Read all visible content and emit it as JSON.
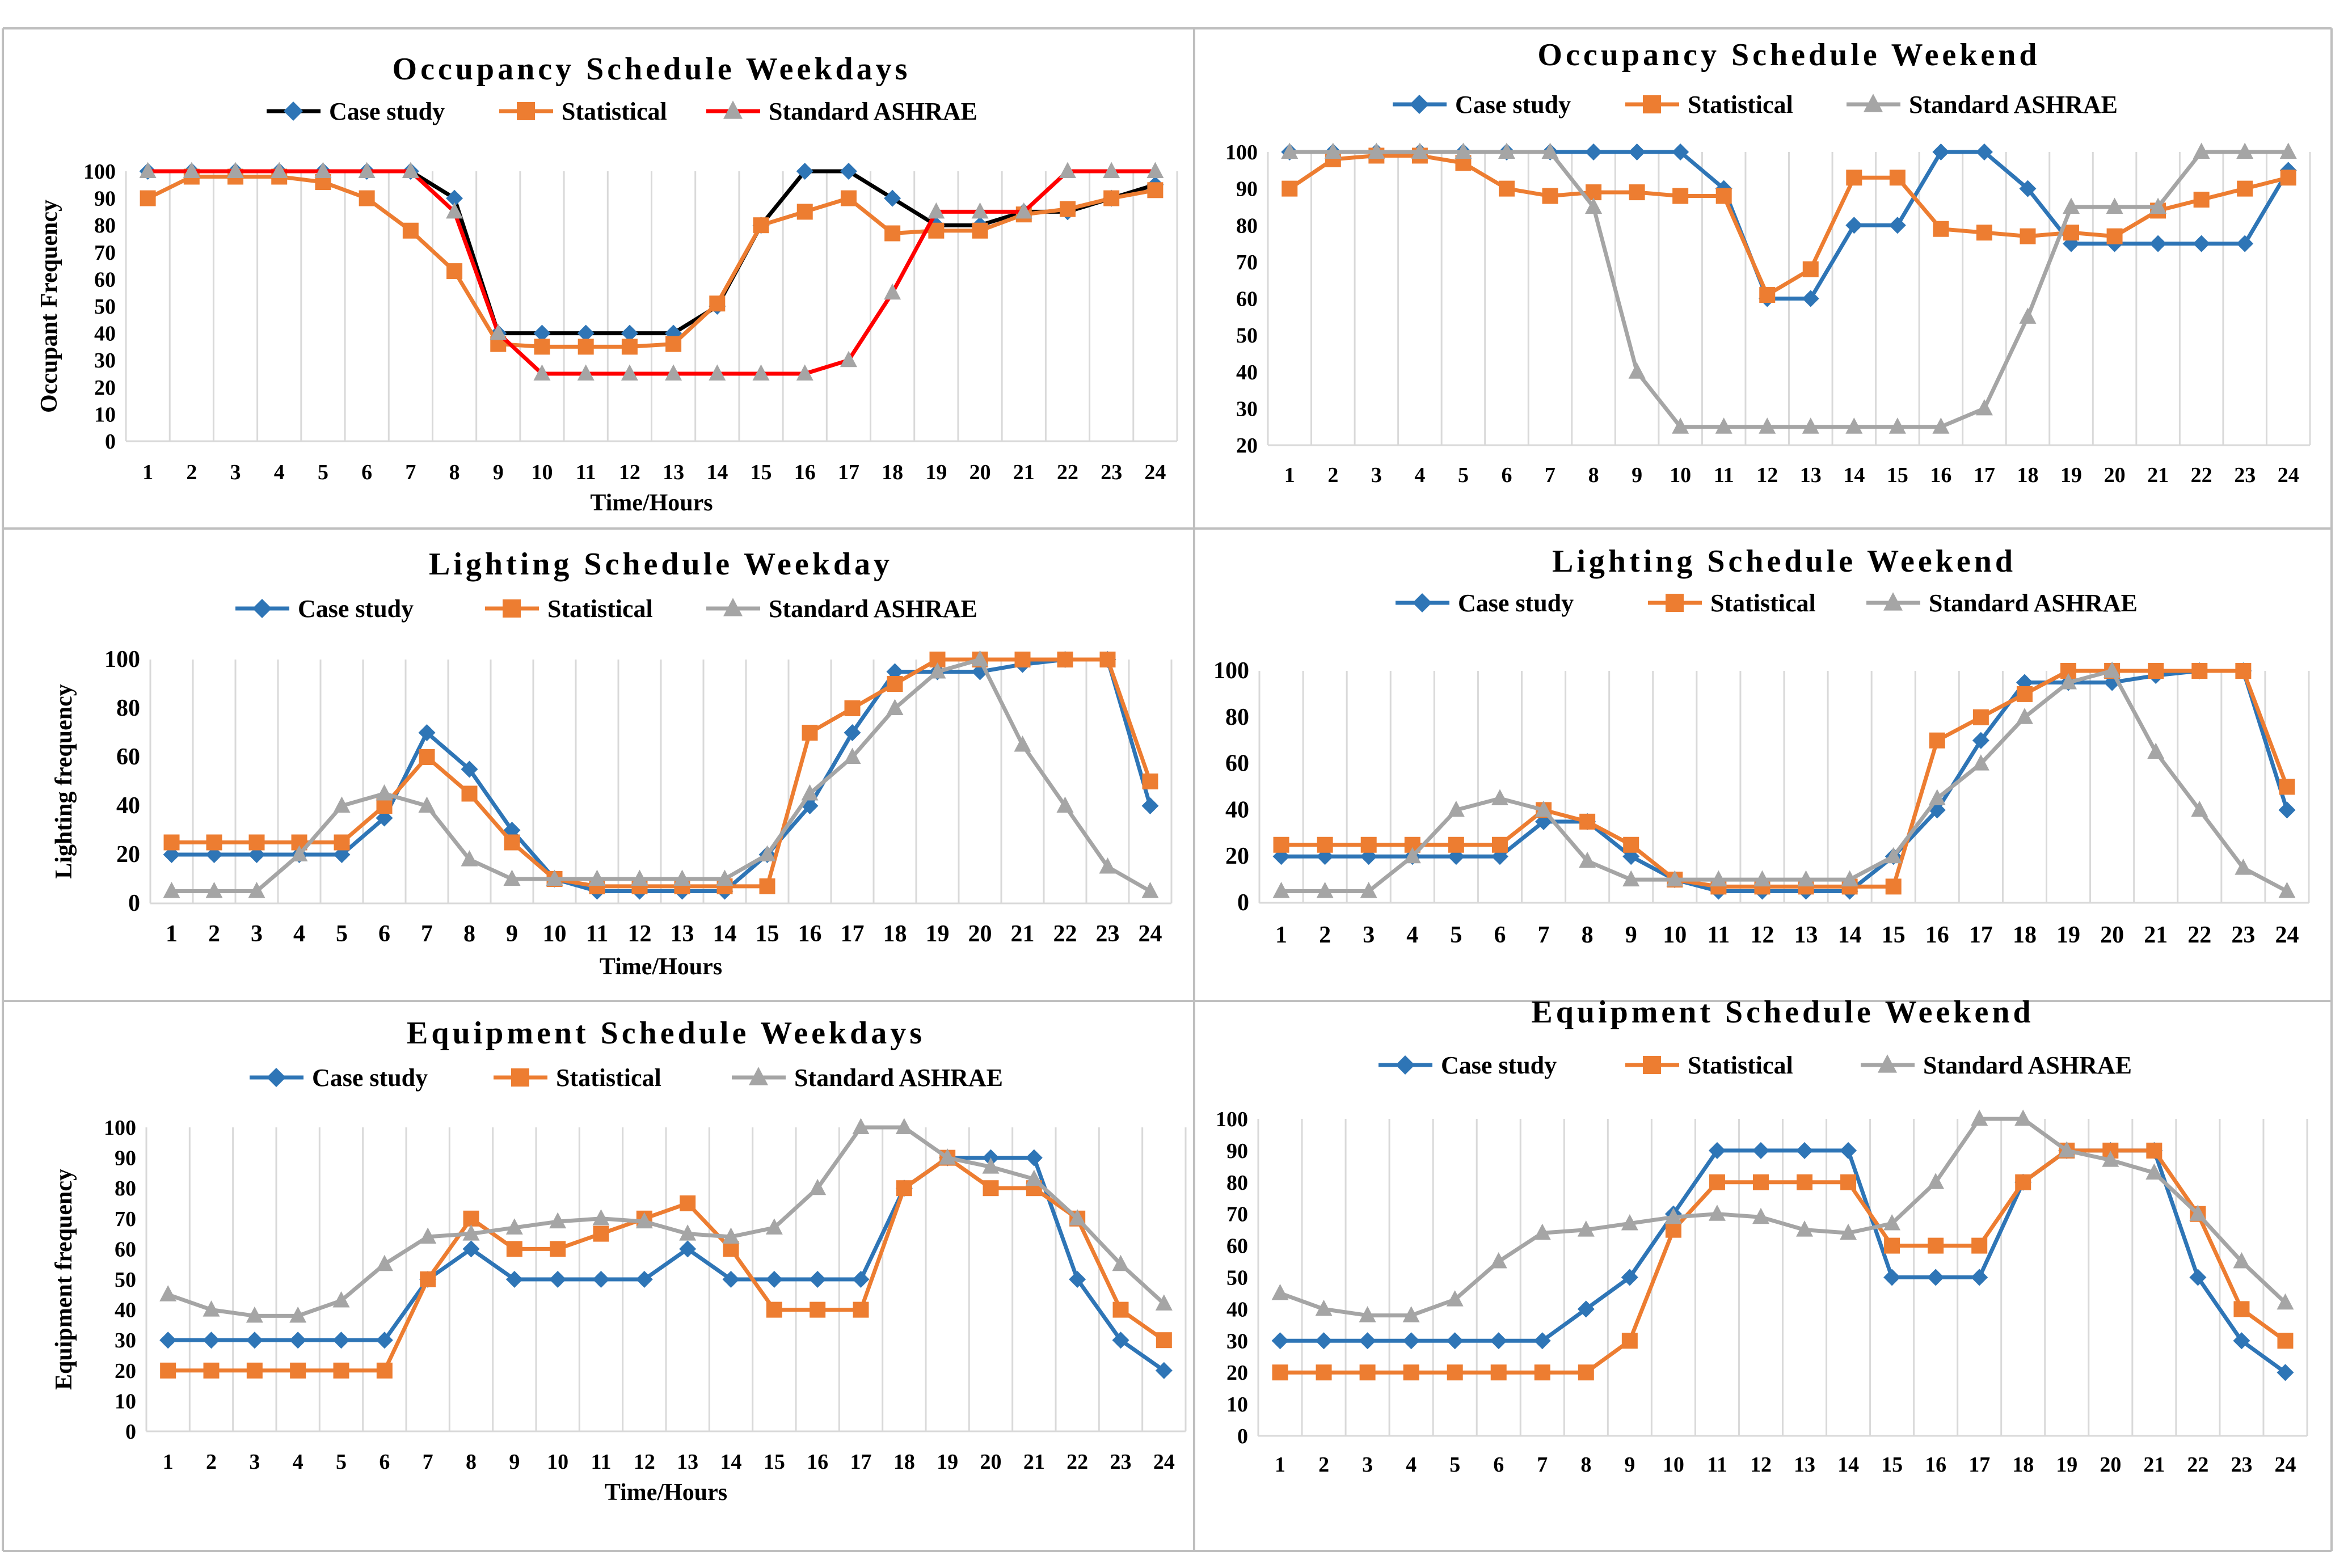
{
  "colors": {
    "case_study": "#2E75B6",
    "statistical": "#ED7D31",
    "ashrae": "#A5A5A5",
    "black": "#000000",
    "red": "#FF0000",
    "grid": "#D9D9D9",
    "border": "#BFBFBF",
    "text": "#000000"
  },
  "chart_data": [
    {
      "id": "occ-weekdays",
      "type": "line",
      "title": "Occupancy Schedule Weekdays",
      "xlabel": "Time/Hours",
      "ylabel": "Occupant Frequency",
      "categories": [
        "1",
        "2",
        "3",
        "4",
        "5",
        "6",
        "7",
        "8",
        "9",
        "10",
        "11",
        "12",
        "13",
        "14",
        "15",
        "16",
        "17",
        "18",
        "19",
        "20",
        "21",
        "22",
        "23",
        "24"
      ],
      "ylim": [
        0,
        100
      ],
      "yticks": [
        0,
        10,
        20,
        30,
        40,
        50,
        60,
        70,
        80,
        90,
        100
      ],
      "grid": true,
      "series": [
        {
          "name": "Case study",
          "color": "#000000",
          "marker": "diamond",
          "marker_color": "#2E75B6",
          "values": [
            100,
            100,
            100,
            100,
            100,
            100,
            100,
            90,
            40,
            40,
            40,
            40,
            40,
            50,
            80,
            100,
            100,
            90,
            80,
            80,
            85,
            85,
            90,
            95
          ]
        },
        {
          "name": "Statistical",
          "color": "#ED7D31",
          "marker": "square",
          "marker_color": "#ED7D31",
          "values": [
            90,
            98,
            98,
            98,
            96,
            90,
            78,
            63,
            36,
            35,
            35,
            35,
            36,
            51,
            80,
            85,
            90,
            77,
            78,
            78,
            84,
            86,
            90,
            93
          ]
        },
        {
          "name": "Standard ASHRAE",
          "color": "#FF0000",
          "marker": "triangle",
          "marker_color": "#A5A5A5",
          "values": [
            100,
            100,
            100,
            100,
            100,
            100,
            100,
            85,
            40,
            25,
            25,
            25,
            25,
            25,
            25,
            25,
            30,
            55,
            85,
            85,
            85,
            100,
            100,
            100
          ]
        }
      ]
    },
    {
      "id": "occ-weekend",
      "type": "line",
      "title": "Occupancy Schedule Weekend",
      "xlabel": "",
      "ylabel": "",
      "categories": [
        "1",
        "2",
        "3",
        "4",
        "5",
        "6",
        "7",
        "8",
        "9",
        "10",
        "11",
        "12",
        "13",
        "14",
        "15",
        "16",
        "17",
        "18",
        "19",
        "20",
        "21",
        "22",
        "23",
        "24"
      ],
      "ylim": [
        20,
        100
      ],
      "yticks": [
        20,
        30,
        40,
        50,
        60,
        70,
        80,
        90,
        100
      ],
      "grid": true,
      "series": [
        {
          "name": "Case study",
          "color": "#2E75B6",
          "marker": "diamond",
          "marker_color": "#2E75B6",
          "values": [
            100,
            100,
            100,
            100,
            100,
            100,
            100,
            100,
            100,
            100,
            90,
            60,
            60,
            80,
            80,
            100,
            100,
            90,
            75,
            75,
            75,
            75,
            75,
            95
          ]
        },
        {
          "name": "Statistical",
          "color": "#ED7D31",
          "marker": "square",
          "marker_color": "#ED7D31",
          "values": [
            90,
            98,
            99,
            99,
            97,
            90,
            88,
            89,
            89,
            88,
            88,
            61,
            68,
            93,
            93,
            79,
            78,
            77,
            78,
            77,
            84,
            87,
            90,
            93
          ]
        },
        {
          "name": "Standard ASHRAE",
          "color": "#A5A5A5",
          "marker": "triangle",
          "marker_color": "#A5A5A5",
          "values": [
            100,
            100,
            100,
            100,
            100,
            100,
            100,
            85,
            40,
            25,
            25,
            25,
            25,
            25,
            25,
            25,
            30,
            55,
            85,
            85,
            85,
            100,
            100,
            100
          ]
        }
      ]
    },
    {
      "id": "light-weekday",
      "type": "line",
      "title": "Lighting Schedule Weekday",
      "xlabel": "Time/Hours",
      "ylabel": "Lighting frequency",
      "categories": [
        "1",
        "2",
        "3",
        "4",
        "5",
        "6",
        "7",
        "8",
        "9",
        "10",
        "11",
        "12",
        "13",
        "14",
        "15",
        "16",
        "17",
        "18",
        "19",
        "20",
        "21",
        "22",
        "23",
        "24"
      ],
      "ylim": [
        0,
        100
      ],
      "yticks": [
        0,
        20,
        40,
        60,
        80,
        100
      ],
      "grid": true,
      "series": [
        {
          "name": "Case study",
          "color": "#2E75B6",
          "marker": "diamond",
          "marker_color": "#2E75B6",
          "values": [
            20,
            20,
            20,
            20,
            20,
            35,
            70,
            55,
            30,
            10,
            5,
            5,
            5,
            5,
            20,
            40,
            70,
            95,
            95,
            95,
            98,
            100,
            100,
            40
          ]
        },
        {
          "name": "Statistical",
          "color": "#ED7D31",
          "marker": "square",
          "marker_color": "#ED7D31",
          "values": [
            25,
            25,
            25,
            25,
            25,
            40,
            60,
            45,
            25,
            10,
            7,
            7,
            7,
            7,
            7,
            70,
            80,
            90,
            100,
            100,
            100,
            100,
            100,
            50
          ]
        },
        {
          "name": "Standard ASHRAE",
          "color": "#A5A5A5",
          "marker": "triangle",
          "marker_color": "#A5A5A5",
          "values": [
            5,
            5,
            5,
            20,
            40,
            45,
            40,
            18,
            10,
            10,
            10,
            10,
            10,
            10,
            20,
            45,
            60,
            80,
            95,
            100,
            65,
            40,
            15,
            5
          ]
        }
      ]
    },
    {
      "id": "light-weekend",
      "type": "line",
      "title": "Lighting Schedule Weekend",
      "xlabel": "",
      "ylabel": "",
      "categories": [
        "1",
        "2",
        "3",
        "4",
        "5",
        "6",
        "7",
        "8",
        "9",
        "10",
        "11",
        "12",
        "13",
        "14",
        "15",
        "16",
        "17",
        "18",
        "19",
        "20",
        "21",
        "22",
        "23",
        "24"
      ],
      "ylim": [
        0,
        100
      ],
      "yticks": [
        0,
        20,
        40,
        60,
        80,
        100
      ],
      "grid": true,
      "series": [
        {
          "name": "Case study",
          "color": "#2E75B6",
          "marker": "diamond",
          "marker_color": "#2E75B6",
          "values": [
            20,
            20,
            20,
            20,
            20,
            20,
            35,
            35,
            20,
            10,
            5,
            5,
            5,
            5,
            20,
            40,
            70,
            95,
            95,
            95,
            98,
            100,
            100,
            40
          ]
        },
        {
          "name": "Statistical",
          "color": "#ED7D31",
          "marker": "square",
          "marker_color": "#ED7D31",
          "values": [
            25,
            25,
            25,
            25,
            25,
            25,
            40,
            35,
            25,
            10,
            7,
            7,
            7,
            7,
            7,
            70,
            80,
            90,
            100,
            100,
            100,
            100,
            100,
            50
          ]
        },
        {
          "name": "Standard ASHRAE",
          "color": "#A5A5A5",
          "marker": "triangle",
          "marker_color": "#A5A5A5",
          "values": [
            5,
            5,
            5,
            20,
            40,
            45,
            40,
            18,
            10,
            10,
            10,
            10,
            10,
            10,
            20,
            45,
            60,
            80,
            95,
            100,
            65,
            40,
            15,
            5
          ]
        }
      ]
    },
    {
      "id": "equip-weekdays",
      "type": "line",
      "title": "Equipment Schedule Weekdays",
      "xlabel": "Time/Hours",
      "ylabel": "Equipment frequency",
      "categories": [
        "1",
        "2",
        "3",
        "4",
        "5",
        "6",
        "7",
        "8",
        "9",
        "10",
        "11",
        "12",
        "13",
        "14",
        "15",
        "16",
        "17",
        "18",
        "19",
        "20",
        "21",
        "22",
        "23",
        "24"
      ],
      "ylim": [
        0,
        100
      ],
      "yticks": [
        0,
        10,
        20,
        30,
        40,
        50,
        60,
        70,
        80,
        90,
        100
      ],
      "grid": true,
      "series": [
        {
          "name": "Case study",
          "color": "#2E75B6",
          "marker": "diamond",
          "marker_color": "#2E75B6",
          "values": [
            30,
            30,
            30,
            30,
            30,
            30,
            50,
            60,
            50,
            50,
            50,
            50,
            60,
            50,
            50,
            50,
            50,
            80,
            90,
            90,
            90,
            50,
            30,
            20
          ]
        },
        {
          "name": "Statistical",
          "color": "#ED7D31",
          "marker": "square",
          "marker_color": "#ED7D31",
          "values": [
            20,
            20,
            20,
            20,
            20,
            20,
            50,
            70,
            60,
            60,
            65,
            70,
            75,
            60,
            40,
            40,
            40,
            80,
            90,
            80,
            80,
            70,
            40,
            30
          ]
        },
        {
          "name": "Standard ASHRAE",
          "color": "#A5A5A5",
          "marker": "triangle",
          "marker_color": "#A5A5A5",
          "values": [
            45,
            40,
            38,
            38,
            43,
            55,
            64,
            65,
            67,
            69,
            70,
            69,
            65,
            64,
            67,
            80,
            100,
            100,
            90,
            87,
            83,
            70,
            55,
            42
          ]
        }
      ]
    },
    {
      "id": "equip-weekend",
      "type": "line",
      "title": "Equipment Schedule Weekend",
      "xlabel": "",
      "ylabel": "",
      "categories": [
        "1",
        "2",
        "3",
        "4",
        "5",
        "6",
        "7",
        "8",
        "9",
        "10",
        "11",
        "12",
        "13",
        "14",
        "15",
        "16",
        "17",
        "18",
        "19",
        "20",
        "21",
        "22",
        "23",
        "24"
      ],
      "ylim": [
        0,
        100
      ],
      "yticks": [
        0,
        10,
        20,
        30,
        40,
        50,
        60,
        70,
        80,
        90,
        100
      ],
      "grid": true,
      "series": [
        {
          "name": "Case study",
          "color": "#2E75B6",
          "marker": "diamond",
          "marker_color": "#2E75B6",
          "values": [
            30,
            30,
            30,
            30,
            30,
            30,
            30,
            40,
            50,
            70,
            90,
            90,
            90,
            90,
            50,
            50,
            50,
            80,
            90,
            90,
            90,
            50,
            30,
            20
          ]
        },
        {
          "name": "Statistical",
          "color": "#ED7D31",
          "marker": "square",
          "marker_color": "#ED7D31",
          "values": [
            20,
            20,
            20,
            20,
            20,
            20,
            20,
            20,
            30,
            65,
            80,
            80,
            80,
            80,
            60,
            60,
            60,
            80,
            90,
            90,
            90,
            70,
            40,
            30
          ]
        },
        {
          "name": "Standard ASHRAE",
          "color": "#A5A5A5",
          "marker": "triangle",
          "marker_color": "#A5A5A5",
          "values": [
            45,
            40,
            38,
            38,
            43,
            55,
            64,
            65,
            67,
            69,
            70,
            69,
            65,
            64,
            67,
            80,
            100,
            100,
            90,
            87,
            83,
            70,
            55,
            42
          ]
        }
      ]
    }
  ]
}
